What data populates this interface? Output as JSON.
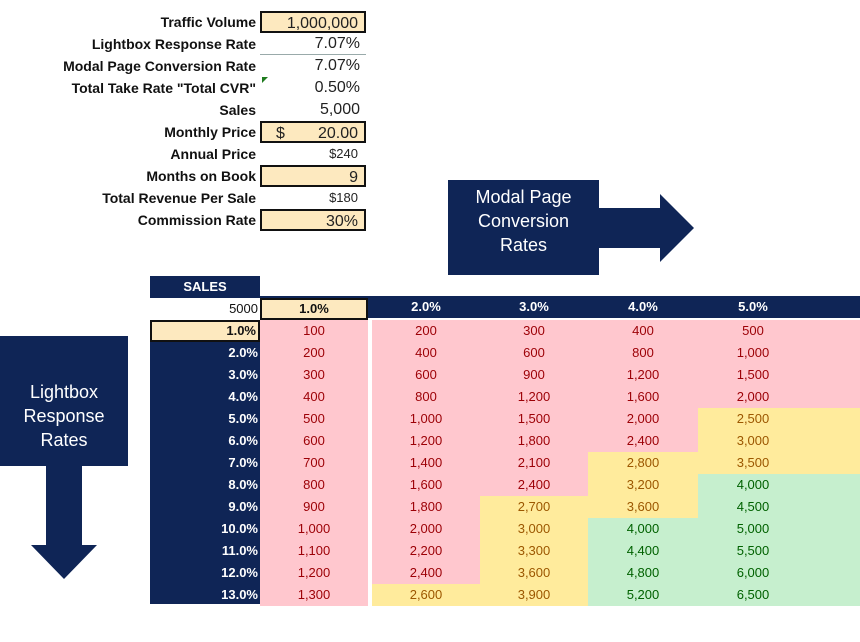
{
  "inputs": [
    {
      "label": "Traffic Volume",
      "value": "1,000,000",
      "style": "input"
    },
    {
      "label": "Lightbox Response Rate",
      "value": "7.07%",
      "style": "underline"
    },
    {
      "label": "Modal Page Conversion Rate",
      "value": "7.07%",
      "style": "plain"
    },
    {
      "label": "Total Take Rate \"Total CVR\"",
      "value": "0.50%",
      "style": "plain"
    },
    {
      "label": "Sales",
      "value": "5,000",
      "style": "plain"
    },
    {
      "label": "Monthly Price",
      "currency": "$",
      "value": "20.00",
      "style": "input"
    },
    {
      "label": "Annual Price",
      "value": "$240",
      "style": "small"
    },
    {
      "label": "Months on Book",
      "value": "9",
      "style": "input"
    },
    {
      "label": "Total Revenue Per Sale",
      "value": "$180",
      "style": "small"
    },
    {
      "label": "Commission Rate",
      "value": "30%",
      "style": "input"
    }
  ],
  "modal_callout": {
    "line1": "Modal Page",
    "line2": "Conversion",
    "line3": "Rates"
  },
  "lightbox_callout": {
    "line1": "Lightbox",
    "line2": "Response",
    "line3": "Rates"
  },
  "table": {
    "title": "SALES",
    "corner": "5000",
    "col_headers": [
      "1.0%",
      "2.0%",
      "3.0%",
      "4.0%",
      "5.0%"
    ],
    "row_headers": [
      "1.0%",
      "2.0%",
      "3.0%",
      "4.0%",
      "5.0%",
      "6.0%",
      "7.0%",
      "8.0%",
      "9.0%",
      "10.0%",
      "11.0%",
      "12.0%",
      "13.0%"
    ],
    "rows": [
      [
        "100",
        "200",
        "300",
        "400",
        "500"
      ],
      [
        "200",
        "400",
        "600",
        "800",
        "1,000"
      ],
      [
        "300",
        "600",
        "900",
        "1,200",
        "1,500"
      ],
      [
        "400",
        "800",
        "1,200",
        "1,600",
        "2,000"
      ],
      [
        "500",
        "1,000",
        "1,500",
        "2,000",
        "2,500"
      ],
      [
        "600",
        "1,200",
        "1,800",
        "2,400",
        "3,000"
      ],
      [
        "700",
        "1,400",
        "2,100",
        "2,800",
        "3,500"
      ],
      [
        "800",
        "1,600",
        "2,400",
        "3,200",
        "4,000"
      ],
      [
        "900",
        "1,800",
        "2,700",
        "3,600",
        "4,500"
      ],
      [
        "1,000",
        "2,000",
        "3,000",
        "4,000",
        "5,000"
      ],
      [
        "1,100",
        "2,200",
        "3,300",
        "4,400",
        "5,500"
      ],
      [
        "1,200",
        "2,400",
        "3,600",
        "4,800",
        "6,000"
      ],
      [
        "1,300",
        "2,600",
        "3,900",
        "5,200",
        "6,500"
      ]
    ],
    "colors": {
      "low_bg": "#ffc7ce",
      "low_fg": "#9c0006",
      "mid_bg": "#ffeb9c",
      "mid_fg": "#9c5700",
      "high_bg": "#c6efce",
      "high_fg": "#006100",
      "header": "#0f2556"
    }
  }
}
